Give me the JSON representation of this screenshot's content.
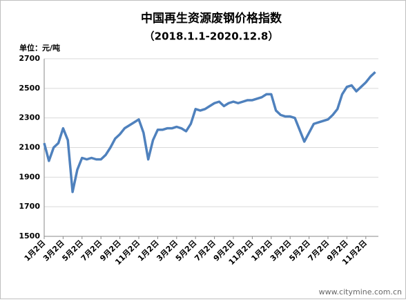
{
  "chart_data": {
    "type": "line",
    "title": "中国再生资源废钢价格指数",
    "subtitle": "（2018.1.1-2020.12.8）",
    "y_label": "单位：元/吨",
    "watermark": "www.citymine.com.cn",
    "categories": [
      "1月2日",
      null,
      null,
      null,
      "3月2日",
      null,
      null,
      null,
      "5月2日",
      null,
      null,
      null,
      "7月2日",
      null,
      null,
      null,
      "9月2日",
      null,
      null,
      null,
      "11月2日",
      null,
      null,
      null,
      "1月2日",
      null,
      null,
      null,
      "3月2日",
      null,
      null,
      null,
      "5月2日",
      null,
      null,
      null,
      "7月2日",
      null,
      null,
      null,
      "9月2日",
      null,
      null,
      null,
      "11月2日",
      null,
      null,
      null,
      "1月2日",
      null,
      null,
      null,
      "3月2日",
      null,
      null,
      null,
      "5月2日",
      null,
      null,
      null,
      "7月2日",
      null,
      null,
      null,
      "9月2日",
      null,
      null,
      null,
      "11月2日",
      null,
      null
    ],
    "series": [
      {
        "name": "废钢价格指数",
        "color": "#4f81bd",
        "values": [
          2130,
          2010,
          2100,
          2130,
          2230,
          2150,
          1800,
          1950,
          2030,
          2020,
          2030,
          2020,
          2020,
          2050,
          2100,
          2160,
          2190,
          2230,
          2250,
          2270,
          2290,
          2200,
          2020,
          2150,
          2220,
          2220,
          2230,
          2230,
          2240,
          2230,
          2210,
          2260,
          2360,
          2350,
          2360,
          2380,
          2400,
          2410,
          2380,
          2400,
          2410,
          2400,
          2410,
          2420,
          2420,
          2430,
          2440,
          2460,
          2460,
          2350,
          2320,
          2310,
          2310,
          2300,
          2220,
          2140,
          2200,
          2260,
          2270,
          2280,
          2290,
          2320,
          2360,
          2460,
          2510,
          2520,
          2480,
          2510,
          2540,
          2580,
          2610
        ]
      }
    ],
    "ylim": [
      1500,
      2700
    ],
    "yticks": [
      1500,
      1700,
      1900,
      2100,
      2300,
      2500,
      2700
    ],
    "grid": true
  }
}
